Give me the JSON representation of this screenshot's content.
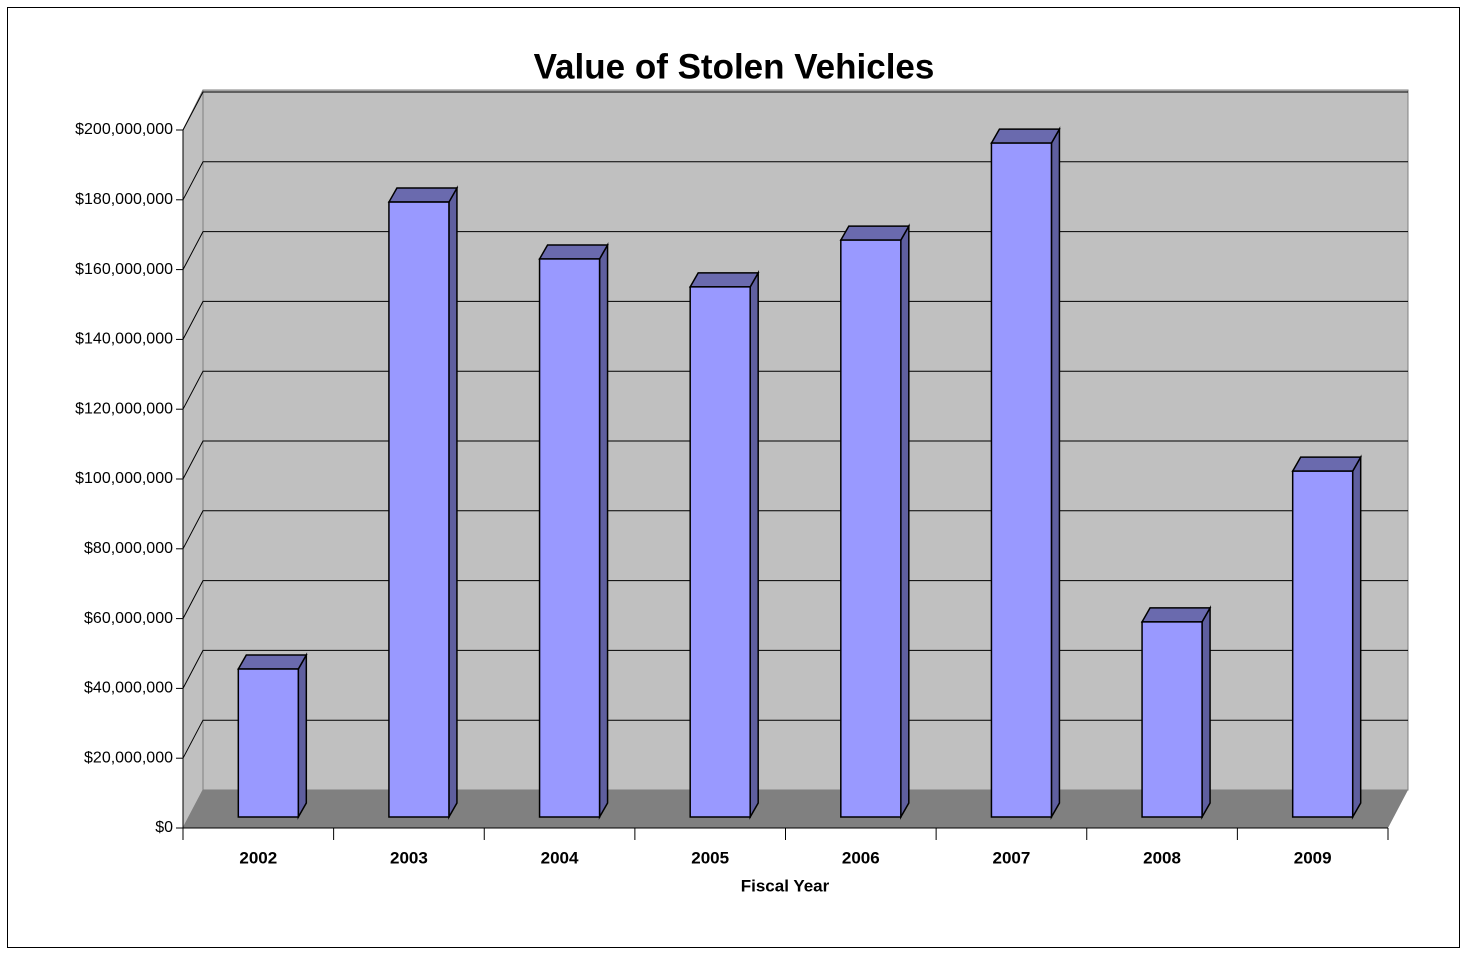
{
  "chart_data": {
    "type": "bar3d",
    "title": "Value of Stolen Vehicles",
    "x_label": "Fiscal Year",
    "categories": [
      "2002",
      "2003",
      "2004",
      "2005",
      "2006",
      "2007",
      "2008",
      "2009"
    ],
    "values": [
      42400000,
      176200000,
      159900000,
      151900000,
      165300000,
      193100000,
      55900000,
      99100000
    ],
    "color": "#9999ff",
    "ylim": [
      0,
      200000000
    ],
    "yticks": [
      {
        "value": 0,
        "label": "$0"
      },
      {
        "value": 20000000,
        "label": "$20,000,000"
      },
      {
        "value": 40000000,
        "label": "$40,000,000"
      },
      {
        "value": 60000000,
        "label": "$60,000,000"
      },
      {
        "value": 80000000,
        "label": "$80,000,000"
      },
      {
        "value": 100000000,
        "label": "$100,000,000"
      },
      {
        "value": 120000000,
        "label": "$120,000,000"
      },
      {
        "value": 140000000,
        "label": "$140,000,000"
      },
      {
        "value": 160000000,
        "label": "$160,000,000"
      },
      {
        "value": 180000000,
        "label": "$180,000,000"
      },
      {
        "value": 200000000,
        "label": "$200,000,000"
      }
    ],
    "grid": true
  }
}
